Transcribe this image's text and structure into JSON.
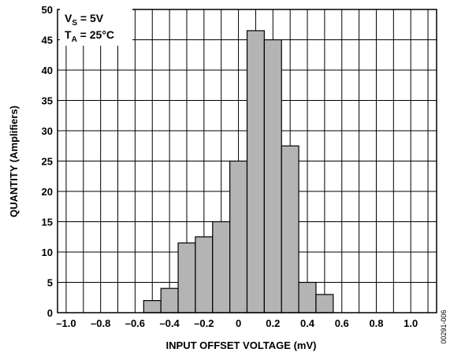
{
  "chart_data": {
    "type": "bar",
    "title": "",
    "xlabel": "INPUT OFFSET VOLTAGE (mV)",
    "ylabel": "QUANTITY (Amplifiers)",
    "xlim": [
      -1.05,
      1.15
    ],
    "ylim": [
      0,
      50
    ],
    "grid": true,
    "bin_width": 0.1,
    "bins": [
      {
        "center": -0.5,
        "value": 2
      },
      {
        "center": -0.4,
        "value": 4
      },
      {
        "center": -0.3,
        "value": 11.5
      },
      {
        "center": -0.2,
        "value": 12.5
      },
      {
        "center": -0.1,
        "value": 15
      },
      {
        "center": 0.0,
        "value": 25
      },
      {
        "center": 0.1,
        "value": 46.5
      },
      {
        "center": 0.2,
        "value": 45
      },
      {
        "center": 0.3,
        "value": 27.5
      },
      {
        "center": 0.4,
        "value": 5
      },
      {
        "center": 0.5,
        "value": 3
      }
    ],
    "x_ticks": [
      {
        "value": -1.0,
        "label": "–1.0"
      },
      {
        "value": -0.8,
        "label": "–0.8"
      },
      {
        "value": -0.6,
        "label": "–0.6"
      },
      {
        "value": -0.4,
        "label": "–0.4"
      },
      {
        "value": -0.2,
        "label": "–0.2"
      },
      {
        "value": 0.0,
        "label": "0"
      },
      {
        "value": 0.2,
        "label": "0.2"
      },
      {
        "value": 0.4,
        "label": "0.4"
      },
      {
        "value": 0.6,
        "label": "0.6"
      },
      {
        "value": 0.8,
        "label": "0.8"
      },
      {
        "value": 1.0,
        "label": "1.0"
      }
    ],
    "y_ticks": [
      {
        "value": 0,
        "label": "0"
      },
      {
        "value": 5,
        "label": "5"
      },
      {
        "value": 10,
        "label": "10"
      },
      {
        "value": 15,
        "label": "15"
      },
      {
        "value": 20,
        "label": "20"
      },
      {
        "value": 25,
        "label": "25"
      },
      {
        "value": 30,
        "label": "30"
      },
      {
        "value": 35,
        "label": "35"
      },
      {
        "value": 40,
        "label": "40"
      },
      {
        "value": 45,
        "label": "45"
      },
      {
        "value": 50,
        "label": "50"
      }
    ],
    "bar_color": "#b4b4b4",
    "annotation": {
      "line1_main": "V",
      "line1_sub": "S",
      "line1_rest": " = 5V",
      "line2_main": "T",
      "line2_sub": "A",
      "line2_rest": " = 25°C"
    }
  },
  "figure_id": "00291-006"
}
